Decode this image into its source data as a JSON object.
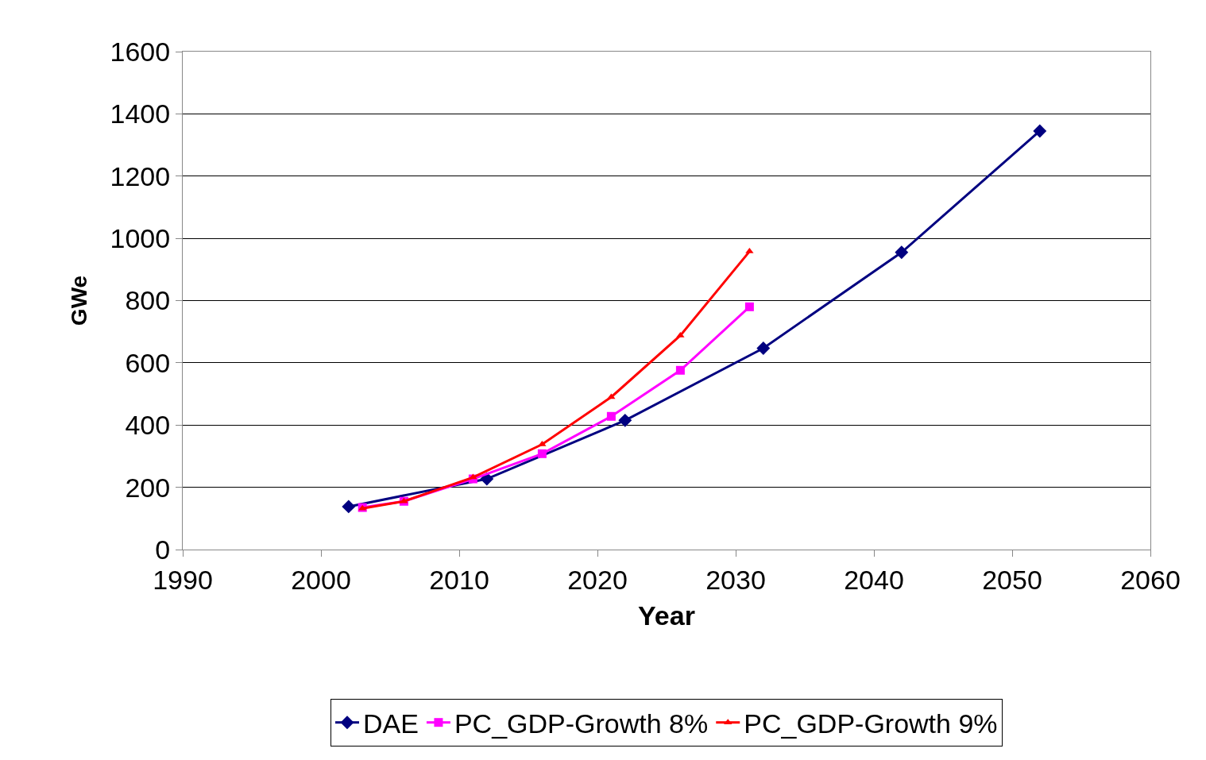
{
  "chart_data": {
    "type": "line",
    "xlabel": "Year",
    "ylabel": "GWe",
    "xlim": [
      1990,
      2060
    ],
    "xticks": [
      1990,
      2000,
      2010,
      2020,
      2030,
      2040,
      2050,
      2060
    ],
    "ylim": [
      0,
      1600
    ],
    "yticks": [
      0,
      200,
      400,
      600,
      800,
      1000,
      1200,
      1400,
      1600
    ],
    "grid": "y",
    "legend": "bottom",
    "series": [
      {
        "name": "DAE",
        "color": "#000080",
        "marker": "diamond",
        "x": [
          2002,
          2012,
          2022,
          2032,
          2042,
          2052
        ],
        "values": [
          138,
          227,
          415,
          647,
          955,
          1345
        ]
      },
      {
        "name": "PC_GDP-Growth 8%",
        "color": "#ff00ff",
        "marker": "square",
        "x": [
          2003,
          2006,
          2011,
          2016,
          2021,
          2026,
          2031
        ],
        "values": [
          135,
          155,
          227,
          308,
          428,
          576,
          780
        ]
      },
      {
        "name": "PC_GDP-Growth 9%",
        "color": "#ff0000",
        "marker": "triangle",
        "x": [
          2003,
          2006,
          2011,
          2016,
          2021,
          2026,
          2031
        ],
        "values": [
          132,
          155,
          232,
          338,
          490,
          688,
          958
        ]
      }
    ]
  }
}
